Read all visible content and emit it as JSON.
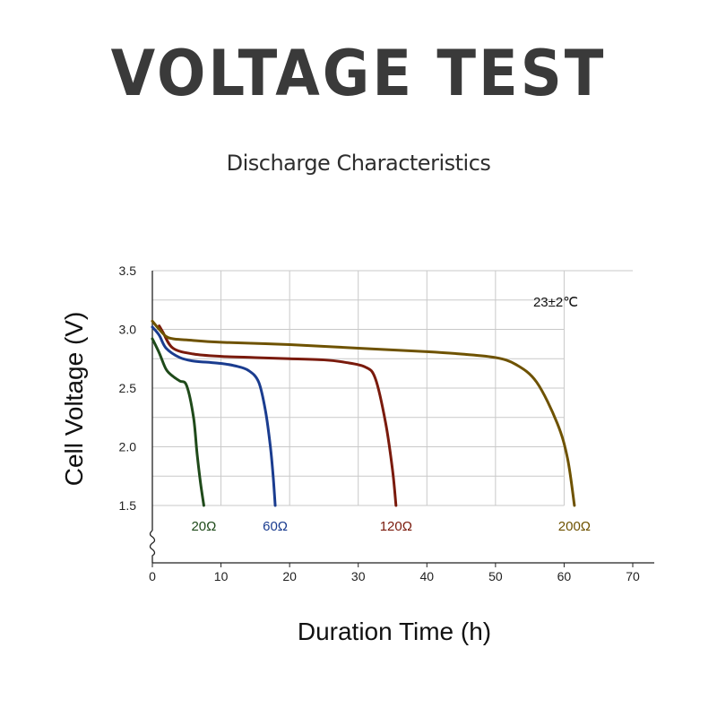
{
  "title": "VOLTAGE TEST",
  "subtitle": "Discharge Characteristics",
  "chart_data": {
    "type": "line",
    "xlabel": "Duration Time (h)",
    "ylabel": "Cell Voltage (V)",
    "xlim": [
      0,
      70
    ],
    "ylim": [
      1.5,
      3.5
    ],
    "xticks": [
      "0",
      "10",
      "20",
      "30",
      "40",
      "50",
      "60",
      "70"
    ],
    "yticks": [
      "1.5",
      "2.0",
      "2.5",
      "3.0",
      "3.5"
    ],
    "grid": true,
    "annotation": "23±2℃",
    "series": [
      {
        "name": "20Ω",
        "color": "#1f4a1a",
        "x": [
          0,
          1,
          2,
          3,
          4,
          5,
          6,
          6.5,
          7,
          7.5
        ],
        "y": [
          2.92,
          2.8,
          2.66,
          2.6,
          2.56,
          2.52,
          2.25,
          1.95,
          1.7,
          1.5
        ]
      },
      {
        "name": "60Ω",
        "color": "#1a3c8f",
        "x": [
          0,
          1,
          2,
          4,
          6,
          8,
          10,
          12,
          14,
          15.5,
          16.5,
          17.2,
          17.6,
          17.9
        ],
        "y": [
          3.02,
          2.95,
          2.84,
          2.76,
          2.73,
          2.72,
          2.71,
          2.69,
          2.65,
          2.55,
          2.3,
          2.0,
          1.75,
          1.5
        ]
      },
      {
        "name": "120Ω",
        "color": "#7a1a0c",
        "x": [
          1,
          1.5,
          3,
          6,
          10,
          15,
          20,
          25,
          28,
          31,
          32.5,
          34,
          35,
          35.5
        ],
        "y": [
          3.03,
          2.98,
          2.84,
          2.79,
          2.77,
          2.76,
          2.75,
          2.74,
          2.72,
          2.68,
          2.58,
          2.2,
          1.8,
          1.5
        ]
      },
      {
        "name": "200Ω",
        "color": "#6e5200",
        "x": [
          0,
          1,
          2,
          3,
          5,
          10,
          20,
          30,
          40,
          45,
          50,
          53,
          56,
          59,
          60.5,
          61.5
        ],
        "y": [
          3.07,
          3.0,
          2.94,
          2.92,
          2.91,
          2.89,
          2.87,
          2.84,
          2.81,
          2.79,
          2.76,
          2.7,
          2.55,
          2.2,
          1.9,
          1.5
        ]
      }
    ]
  }
}
